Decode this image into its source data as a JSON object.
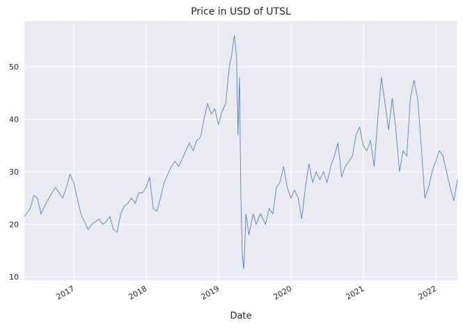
{
  "chart_data": {
    "type": "line",
    "title": "Price in USD of UTSL",
    "xlabel": "Date",
    "x": [
      2016.32,
      2016.4,
      2016.45,
      2016.5,
      2016.55,
      2016.6,
      2016.7,
      2016.75,
      2016.8,
      2016.85,
      2016.9,
      2016.95,
      2017.0,
      2017.05,
      2017.1,
      2017.15,
      2017.2,
      2017.25,
      2017.3,
      2017.35,
      2017.4,
      2017.45,
      2017.5,
      2017.55,
      2017.6,
      2017.65,
      2017.7,
      2017.75,
      2017.8,
      2017.85,
      2017.9,
      2017.95,
      2018.0,
      2018.05,
      2018.1,
      2018.15,
      2018.2,
      2018.25,
      2018.3,
      2018.35,
      2018.4,
      2018.45,
      2018.5,
      2018.55,
      2018.6,
      2018.65,
      2018.7,
      2018.75,
      2018.8,
      2018.85,
      2018.9,
      2018.95,
      2019.0,
      2019.05,
      2019.1,
      2019.15,
      2019.18,
      2019.22,
      2019.25,
      2019.27,
      2019.29,
      2019.31,
      2019.33,
      2019.35,
      2019.38,
      2019.42,
      2019.48,
      2019.52,
      2019.58,
      2019.65,
      2019.7,
      2019.75,
      2019.8,
      2019.85,
      2019.9,
      2019.95,
      2020.0,
      2020.05,
      2020.1,
      2020.15,
      2020.2,
      2020.25,
      2020.3,
      2020.35,
      2020.4,
      2020.45,
      2020.5,
      2020.55,
      2020.6,
      2020.65,
      2020.7,
      2020.75,
      2020.8,
      2020.85,
      2020.9,
      2020.95,
      2021.0,
      2021.05,
      2021.1,
      2021.15,
      2021.2,
      2021.25,
      2021.3,
      2021.35,
      2021.4,
      2021.45,
      2021.5,
      2021.55,
      2021.6,
      2021.65,
      2021.7,
      2021.75,
      2021.8,
      2021.85,
      2021.9,
      2021.95,
      2022.0,
      2022.05,
      2022.1,
      2022.15,
      2022.2,
      2022.25,
      2022.3
    ],
    "series": [
      {
        "color": "#4c72b0",
        "values": [
          21.5,
          23,
          25.5,
          25,
          22,
          23.5,
          26,
          27,
          26,
          25,
          27,
          29.5,
          28,
          25,
          22,
          20.5,
          19,
          20,
          20.5,
          21,
          20,
          20.5,
          21.5,
          19,
          18.5,
          22,
          23.5,
          24,
          25,
          24,
          26,
          26,
          27,
          29,
          23,
          22.5,
          25,
          28,
          29.5,
          31,
          32,
          31,
          32.5,
          34,
          35.5,
          34,
          36,
          36.5,
          40,
          43,
          41,
          42,
          39,
          41.5,
          43,
          50,
          52,
          56,
          52,
          37,
          48,
          25,
          14,
          11.5,
          22,
          18,
          22,
          20,
          22,
          20,
          23,
          22,
          27,
          28,
          31,
          27,
          25,
          26.5,
          25,
          21,
          27,
          31.5,
          28,
          30,
          28.5,
          30,
          28,
          31,
          33,
          35.5,
          29,
          31,
          32,
          33,
          37,
          38.5,
          35,
          34,
          36,
          31,
          40,
          48,
          43,
          38,
          44,
          38,
          30,
          34,
          33,
          44,
          47.5,
          44,
          35,
          25,
          27,
          30,
          32,
          34,
          33,
          30,
          27,
          24.5,
          28.5
        ]
      }
    ],
    "xlim": [
      2016.32,
      2022.3
    ],
    "ylim": [
      9.34,
      58.74
    ],
    "xticks": [
      2017,
      2018,
      2019,
      2020,
      2021,
      2022
    ],
    "yticks": [
      10,
      20,
      30,
      40,
      50
    ],
    "grid": true
  }
}
